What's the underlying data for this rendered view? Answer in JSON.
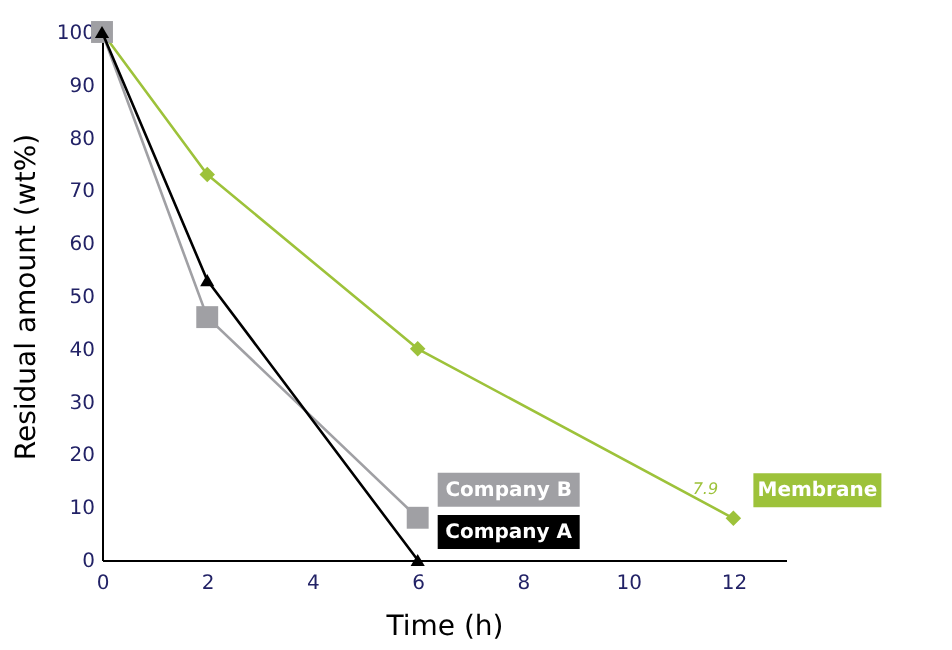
{
  "chart_data": {
    "type": "line",
    "xlabel": "Time (h)",
    "ylabel": "Residual amount (wt%)",
    "xlim": [
      0,
      13
    ],
    "xticks": [
      0,
      2,
      4,
      6,
      8,
      10,
      12
    ],
    "ylim": [
      0,
      100
    ],
    "yticks": [
      0,
      10,
      20,
      30,
      40,
      50,
      60,
      70,
      80,
      90,
      100
    ],
    "grid": false,
    "series": [
      {
        "name": "Membrane",
        "color": "#9dc23a",
        "marker": "diamond",
        "x": [
          0,
          2,
          6,
          12
        ],
        "values": [
          100,
          73,
          40,
          7.9
        ],
        "value_labels": [
          null,
          null,
          null,
          "7.9"
        ]
      },
      {
        "name": "Company B",
        "color": "#a0a0a4",
        "marker": "square",
        "x": [
          0,
          2,
          6
        ],
        "values": [
          100,
          46,
          8
        ]
      },
      {
        "name": "Company A",
        "color": "#000000",
        "marker": "triangle",
        "x": [
          0,
          2,
          6
        ],
        "values": [
          100,
          53,
          0
        ]
      }
    ]
  }
}
